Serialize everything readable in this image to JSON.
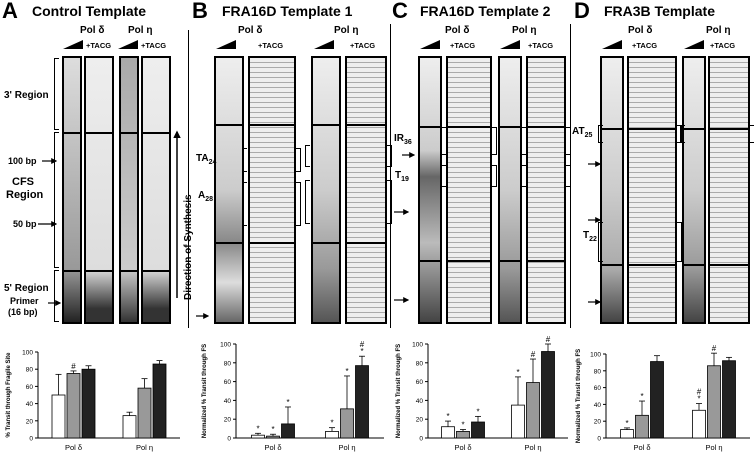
{
  "panels": [
    {
      "letter": "A",
      "title": "Control Template"
    },
    {
      "letter": "B",
      "title": "FRA16D Template 1"
    },
    {
      "letter": "C",
      "title": "FRA16D Template 2"
    },
    {
      "letter": "D",
      "title": "FRA3B Template"
    }
  ],
  "pol_delta": "Pol δ",
  "pol_eta": "Pol η",
  "tacg": "+TACG",
  "labels": {
    "region3": "3' Region",
    "cfs1": "CFS",
    "cfs2": "Region",
    "region5": "5' Region",
    "bp100": "100 bp",
    "bp50": "50 bp",
    "primer1": "Primer",
    "primer2": "(16 bp)",
    "direction": "Direction of Synthesis",
    "ta24": "TA",
    "ta24_sub": "24",
    "a28": "A",
    "a28_sub": "28",
    "ir36": "IR",
    "ir36_sub": "36",
    "t19": "T",
    "t19_sub": "19",
    "at25": "AT",
    "at25_sub": "25",
    "t22": "T",
    "t22_sub": "22"
  },
  "chart_data": [
    {
      "type": "bar",
      "panel": "A",
      "ylabel": "% Transit through Fragile Site",
      "yticks": [
        0,
        20,
        40,
        60,
        80,
        100
      ],
      "ylim": [
        0,
        100
      ],
      "categories": [
        "Pol δ",
        "Pol η"
      ],
      "series": [
        {
          "color": "#ffffff",
          "values": [
            50,
            26
          ],
          "errors": [
            24,
            4
          ]
        },
        {
          "color": "#999999",
          "values": [
            75,
            58
          ],
          "errors": [
            3,
            11
          ]
        },
        {
          "color": "#222222",
          "values": [
            80,
            86
          ],
          "errors": [
            4,
            4
          ]
        }
      ],
      "markers": [
        [
          [],
          [
            "#"
          ],
          []
        ],
        [
          [],
          [],
          []
        ]
      ]
    },
    {
      "type": "bar",
      "panel": "B",
      "ylabel": "Normalized % Transit through FS",
      "yticks": [
        0,
        20,
        40,
        60,
        80,
        100
      ],
      "ylim": [
        0,
        100
      ],
      "categories": [
        "Pol δ",
        "Pol η"
      ],
      "series": [
        {
          "color": "#ffffff",
          "values": [
            3,
            7
          ],
          "errors": [
            2,
            4
          ]
        },
        {
          "color": "#999999",
          "values": [
            2,
            31
          ],
          "errors": [
            2,
            35
          ]
        },
        {
          "color": "#222222",
          "values": [
            15,
            77
          ],
          "errors": [
            18,
            10
          ]
        }
      ],
      "markers": [
        [
          [
            "*"
          ],
          [
            "*"
          ],
          [
            "*"
          ]
        ],
        [
          [
            "*"
          ],
          [
            "*"
          ],
          [
            "#",
            "*"
          ]
        ]
      ]
    },
    {
      "type": "bar",
      "panel": "C",
      "ylabel": "Normalized % Transit through FS",
      "yticks": [
        0,
        20,
        40,
        60,
        80,
        100
      ],
      "ylim": [
        0,
        100
      ],
      "categories": [
        "Pol δ",
        "Pol η"
      ],
      "series": [
        {
          "color": "#ffffff",
          "values": [
            12,
            35
          ],
          "errors": [
            6,
            30
          ]
        },
        {
          "color": "#999999",
          "values": [
            7,
            59
          ],
          "errors": [
            2,
            25
          ]
        },
        {
          "color": "#222222",
          "values": [
            17,
            92
          ],
          "errors": [
            6,
            8
          ]
        }
      ],
      "markers": [
        [
          [
            "*"
          ],
          [
            "*"
          ],
          [
            "*"
          ]
        ],
        [
          [
            "*"
          ],
          [
            "#"
          ],
          [
            "#"
          ]
        ]
      ]
    },
    {
      "type": "bar",
      "panel": "D",
      "ylabel": "Normalized % Transit through FS",
      "yticks": [
        0,
        20,
        40,
        60,
        80,
        100
      ],
      "ylim": [
        0,
        100
      ],
      "categories": [
        "Pol δ",
        "Pol η"
      ],
      "series": [
        {
          "color": "#ffffff",
          "values": [
            10,
            33
          ],
          "errors": [
            2,
            8
          ]
        },
        {
          "color": "#999999",
          "values": [
            27,
            86
          ],
          "errors": [
            17,
            15
          ]
        },
        {
          "color": "#222222",
          "values": [
            91,
            92
          ],
          "errors": [
            7,
            4
          ]
        }
      ],
      "markers": [
        [
          [
            "*"
          ],
          [
            "*"
          ],
          []
        ],
        [
          [
            "#",
            "*"
          ],
          [
            "#"
          ],
          []
        ]
      ]
    }
  ]
}
